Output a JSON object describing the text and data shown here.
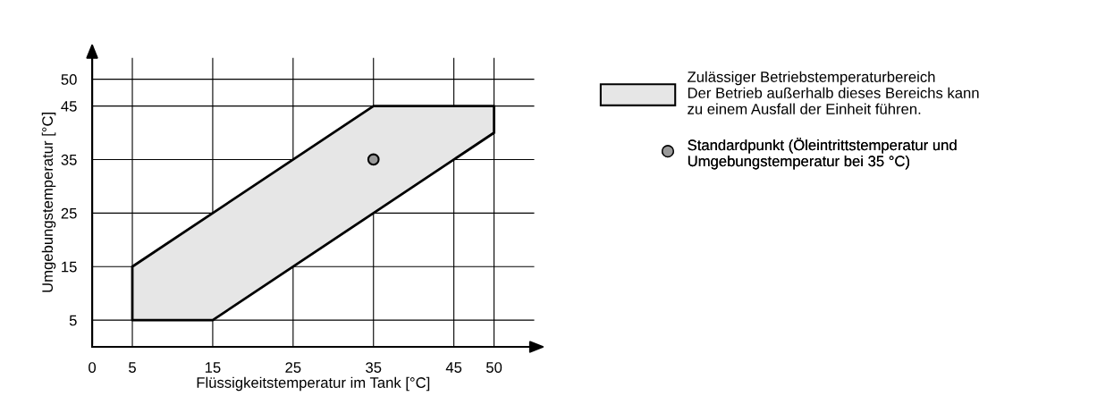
{
  "chart_data": {
    "type": "area",
    "xlabel": "Flüssigkeitstemperatur im Tank [°C]",
    "ylabel": "Umgebungstemperatur [°C]",
    "xlim": [
      0,
      55
    ],
    "ylim": [
      0,
      54
    ],
    "xticks": [
      0,
      5,
      15,
      25,
      35,
      45,
      50
    ],
    "yticks": [
      5,
      15,
      25,
      35,
      45,
      50
    ],
    "grid": true,
    "legend": "right",
    "series": [
      {
        "name": "Zulässiger Betriebstemperaturbereich\nDer Betrieb außerhalb dieses Bereichs kann\nzu einem Ausfall der Einheit führen.",
        "color": "#e6e6e6",
        "x": [
          5,
          15,
          35,
          50,
          50,
          35,
          5
        ],
        "values": [
          5,
          5,
          25,
          40,
          45,
          45,
          15
        ]
      },
      {
        "type": "scatter",
        "name": "Standardpunkt (Öleintrittstemperatur und\nUmgebungstemperatur bei 35 °C)",
        "color": "#999999",
        "x": [
          35
        ],
        "values": [
          35
        ],
        "marker": "circle"
      }
    ]
  }
}
